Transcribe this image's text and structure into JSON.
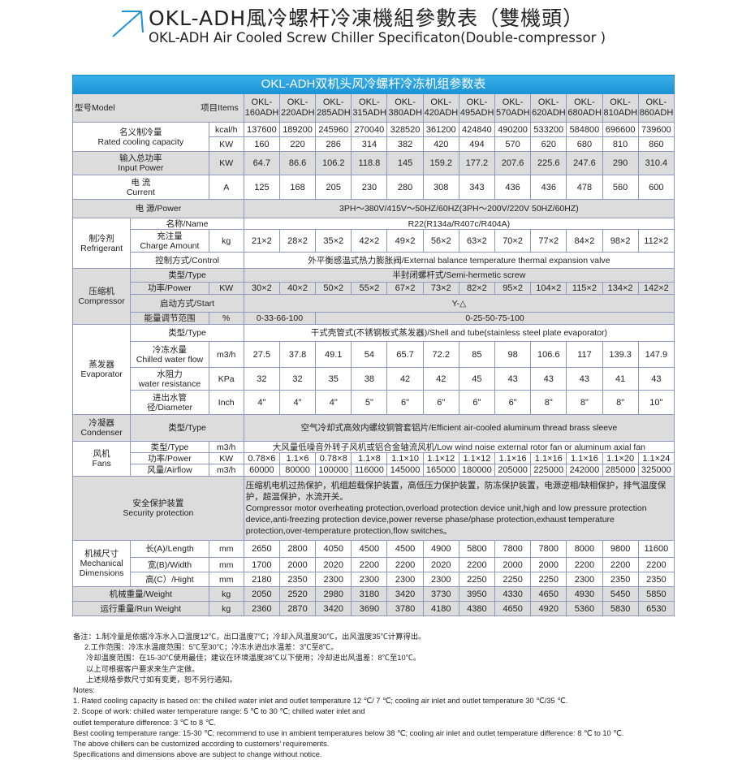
{
  "heading": {
    "title_cn": "OKL-ADH風冷螺杆冷凍機組參數表（雙機頭）",
    "title_en": "OKL-ADH Air Cooled Screw Chiller Specificaton(Double-compressor )",
    "arrow_icon": "arrow-up-right-icon",
    "accent_color": "#1b93d6"
  },
  "table": {
    "title": "OKL-ADH双机头风冷螺杆冷冻机组参数表",
    "header": {
      "model_label": "型号Model",
      "items_label": "项目Items",
      "models": [
        "OKL-160ADH",
        "OKL-220ADH",
        "OKL-285ADH",
        "OKL-315ADH",
        "OKL-380ADH",
        "OKL-420ADH",
        "OKL-495ADH",
        "OKL-570ADH",
        "OKL-620ADH",
        "OKL-680ADH",
        "OKL-810ADH",
        "OKL-860ADH"
      ]
    },
    "cooling_capacity": {
      "cn": "名义制冷量",
      "en": "Rated cooling capacity",
      "unit_kcal": "kcal/h",
      "kcal": [
        "137600",
        "189200",
        "245960",
        "270040",
        "328520",
        "361200",
        "424840",
        "490200",
        "533200",
        "584800",
        "696600",
        "739600"
      ],
      "unit_kw": "KW",
      "kw": [
        "160",
        "220",
        "286",
        "314",
        "382",
        "420",
        "494",
        "570",
        "620",
        "680",
        "810",
        "860"
      ]
    },
    "input_power": {
      "cn": "输入总功率",
      "en": "Input Power",
      "unit": "KW",
      "values": [
        "64.7",
        "86.6",
        "106.2",
        "118.8",
        "145",
        "159.2",
        "177.2",
        "207.6",
        "225.6",
        "247.6",
        "290",
        "310.4"
      ]
    },
    "current": {
      "cn": "电  流",
      "en": "Current",
      "unit": "A",
      "values": [
        "125",
        "168",
        "205",
        "230",
        "280",
        "308",
        "343",
        "436",
        "436",
        "478",
        "560",
        "600"
      ]
    },
    "power": {
      "label": "电    源/Power",
      "value": "3PH～380V/415V～50HZ/60HZ(3PH～200V/220V  50HZ/60HZ)"
    },
    "refrigerant": {
      "cn": "制冷剂",
      "en": "Refrigerant",
      "name_label": "名称/Name",
      "name_value": "R22(R134a/R407c/R404A)",
      "charge_cn": "充注量",
      "charge_en": "Charge Amount",
      "charge_unit": "kg",
      "charge": [
        "21×2",
        "28×2",
        "35×2",
        "42×2",
        "49×2",
        "56×2",
        "63×2",
        "70×2",
        "77×2",
        "84×2",
        "98×2",
        "112×2"
      ],
      "control_label": "控制方式/Control",
      "control_value": "外平衡感温式热力膨胀阀/External balance temperature thermal expansion valve"
    },
    "compressor": {
      "cn": "压缩机",
      "en": "Compressor",
      "type_label": "类型/Type",
      "type_value": "半封闭螺杆式/Semi-hermetic screw",
      "power_label": "功率/Power",
      "power_unit": "KW",
      "power": [
        "30×2",
        "40×2",
        "50×2",
        "55×2",
        "67×2",
        "73×2",
        "82×2",
        "95×2",
        "104×2",
        "115×2",
        "134×2",
        "142×2"
      ],
      "start_label": "启动方式/Start",
      "start_value": "Y-△",
      "energy_label": "能量调节范围",
      "energy_unit": "%",
      "energy_first": "0-33-66-100",
      "energy_rest": "0-25-50-75-100"
    },
    "evaporator": {
      "cn": "蒸发器",
      "en": "Evaporator",
      "type_label": "类型/Type",
      "type_value": "干式壳管式(不锈钢板式蒸发器)/Shell and tube(stainless steel plate evaporator)",
      "flow_cn": "冷冻水量",
      "flow_en": "Chilled water flow",
      "flow_unit": "m3/h",
      "flow": [
        "27.5",
        "37.8",
        "49.1",
        "54",
        "65.7",
        "72.2",
        "85",
        "98",
        "106.6",
        "117",
        "139.3",
        "147.9"
      ],
      "res_cn": "水阻力",
      "res_en": "water resistance",
      "res_unit": "KPa",
      "res": [
        "32",
        "32",
        "35",
        "38",
        "42",
        "42",
        "45",
        "43",
        "43",
        "43",
        "41",
        "43"
      ],
      "dia_label": "进出水管径/Diameter",
      "dia_unit": "Inch",
      "dia": [
        "4\"",
        "4\"",
        "4\"",
        "5\"",
        "6\"",
        "6\"",
        "6\"",
        "6\"",
        "8\"",
        "8\"",
        "8\"",
        "10\""
      ]
    },
    "condenser": {
      "cn": "冷凝器",
      "en": "Condenser",
      "type_label": "类型/Type",
      "type_value": "空气冷却式高效内螺纹铜管套铝片/Efficient air-cooled aluminum thread brass sleeve"
    },
    "fans": {
      "cn": "风机",
      "en": "Fans",
      "type_label": "类型/Type",
      "type_unit": "m3/h",
      "type_value": "大风量低噪音外转子风机或铝合金轴流风机/Low wind noise external rotor fan or aluminum axial fan",
      "power_label": "功率/Power",
      "power_unit": "KW",
      "power": [
        "0.78×6",
        "1.1×6",
        "0.78×8",
        "1.1×8",
        "1.1×10",
        "1.1×12",
        "1.1×12",
        "1.1×16",
        "1.1×16",
        "1.1×16",
        "1.1×20",
        "1.1×24"
      ],
      "airflow_label": "风量/Airflow",
      "airflow_unit": "m3/h",
      "airflow": [
        "60000",
        "80000",
        "100000",
        "116000",
        "145000",
        "165000",
        "180000",
        "205000",
        "225000",
        "242000",
        "285000",
        "325000"
      ]
    },
    "security": {
      "cn": "安全保护装置",
      "en": "Security protection",
      "text_cn": "压缩机电机过热保护，机组超载保护装置，高低压力保护装置，防冻保护装置，电源逆相/缺相保护，排气温度保护，超温保护，水流开关。",
      "text_en": "Compressor motor overheating protection,overload protection device unit,high and low pressure protection device,anti-freezing protection device,power reverse phase/phase protection,exhaust temperature protection,over-temperature protection,flow switches。"
    },
    "dimensions": {
      "cn": "机械尺寸",
      "en1": "Mechanical",
      "en2": "Dimensions",
      "length_label": "长(A)/Length",
      "length_unit": "mm",
      "length": [
        "2650",
        "2800",
        "4050",
        "4500",
        "4500",
        "4900",
        "5800",
        "7800",
        "7800",
        "8000",
        "9800",
        "11600"
      ],
      "width_label": "宽(B)/Width",
      "width_unit": "mm",
      "width": [
        "1700",
        "2000",
        "2020",
        "2200",
        "2200",
        "2020",
        "2200",
        "2000",
        "2000",
        "2200",
        "2200",
        "2200"
      ],
      "height_label": "高(C）/Hight",
      "height_unit": "mm",
      "height": [
        "2180",
        "2350",
        "2300",
        "2300",
        "2300",
        "2300",
        "2250",
        "2250",
        "2250",
        "2300",
        "2350",
        "2350"
      ]
    },
    "weight": {
      "label": "机械重量/Weight",
      "unit": "kg",
      "values": [
        "2050",
        "2520",
        "2980",
        "3180",
        "3420",
        "3730",
        "3950",
        "4330",
        "4650",
        "4930",
        "5450",
        "5850"
      ]
    },
    "run_weight": {
      "label": "运行重量/Run Weight",
      "unit": "kg",
      "values": [
        "2360",
        "2870",
        "3420",
        "3690",
        "3780",
        "4180",
        "4380",
        "4650",
        "4920",
        "5360",
        "5830",
        "6530"
      ]
    }
  },
  "notes": {
    "cn": [
      "备注：1.制冷量是依据冷冻水入口温度12℃，出口温度7℃；冷却入风温度30℃，出风温度35℃计算得出。",
      "2.工作范围：冷冻水温度范围：5℃至30℃；冷冻水进出水温差：3℃至8℃。",
      "冷却温度范围：在15-30℃使用最佳；建议在环境温度38℃以下使用；冷却进出风温差：8℃至10℃。",
      "以上可根据客户要求来生产定做。",
      "上述规格参数尺寸如有变更，恕不另行通知。"
    ],
    "en": [
      "Notes:",
      "1. Rated cooling capacity is based on: the chilled water inlet and outlet temperature 12 ℃/ 7 ℃; cooling air inlet and outlet temperature 30 ℃/35 ℃.",
      "2. Scope of work: chilled water temperature range: 5 ℃ to 30 ℃; chilled water inlet and",
      "outlet temperature difference: 3 ℃ to 8 ℃.",
      "Best cooling temperature range: 15-30 ℃; recommend to use in ambient temperatures below 38 ℃; cooling air inlet and outlet temperature difference: 8 ℃ to 10 ℃.",
      " The above chillers can be customized according to customers’ requirements.",
      "Specifications and dimensions above are subject to change without notice."
    ]
  }
}
